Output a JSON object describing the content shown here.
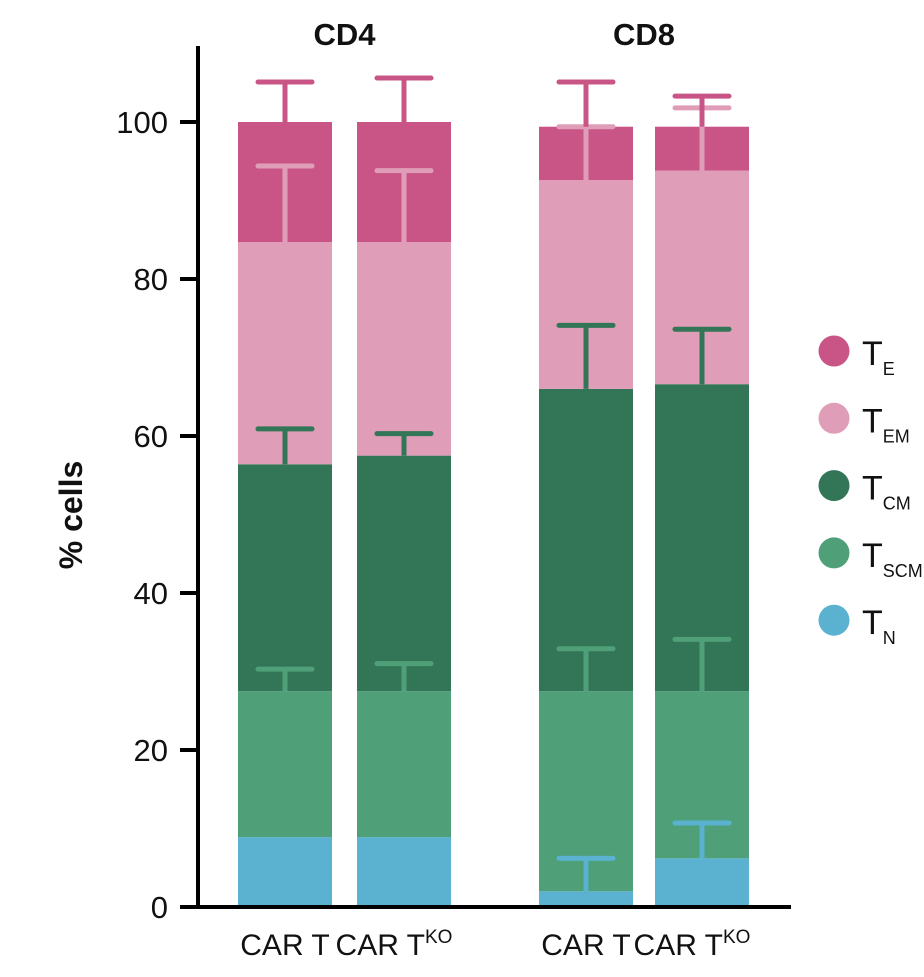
{
  "chart_data": {
    "type": "stacked-bar",
    "ylabel": "% cells",
    "ylim": [
      0,
      110
    ],
    "yticks": [
      0,
      20,
      40,
      60,
      80,
      100
    ],
    "grid": false,
    "legend_position": "right",
    "groups": [
      {
        "title": "CD4",
        "bars": [
          {
            "label": "CAR T",
            "sup": ""
          },
          {
            "label": "CAR T",
            "sup": "KO"
          }
        ]
      },
      {
        "title": "CD8",
        "bars": [
          {
            "label": "CAR T",
            "sup": ""
          },
          {
            "label": "CAR T",
            "sup": "KO"
          }
        ]
      }
    ],
    "series": [
      {
        "name": "T_N",
        "label": "T",
        "sub": "N",
        "color": "#5ab1d0",
        "values": [
          8.9,
          8.9,
          2.0,
          6.2
        ],
        "error_tops": [
          null,
          null,
          6.2,
          10.7
        ]
      },
      {
        "name": "T_SCM",
        "label": "T",
        "sub": "SCM",
        "color": "#4fa079",
        "values": [
          18.6,
          18.6,
          25.5,
          21.3
        ],
        "error_tops": [
          30.3,
          31.0,
          32.9,
          34.1
        ]
      },
      {
        "name": "T_CM",
        "label": "T",
        "sub": "CM",
        "color": "#337657",
        "values": [
          28.9,
          30.0,
          38.5,
          39.1
        ],
        "error_tops": [
          60.9,
          60.3,
          74.1,
          73.6
        ]
      },
      {
        "name": "T_EM",
        "label": "T",
        "sub": "EM",
        "color": "#e09db8",
        "values": [
          28.3,
          27.2,
          26.6,
          27.2
        ],
        "error_tops": [
          94.4,
          93.8,
          99.4,
          101.8
        ]
      },
      {
        "name": "T_E",
        "label": "T",
        "sub": "E",
        "color": "#c95586",
        "values": [
          15.3,
          15.3,
          6.8,
          5.6
        ],
        "error_tops": [
          105.1,
          105.6,
          105.1,
          103.3
        ]
      }
    ]
  }
}
